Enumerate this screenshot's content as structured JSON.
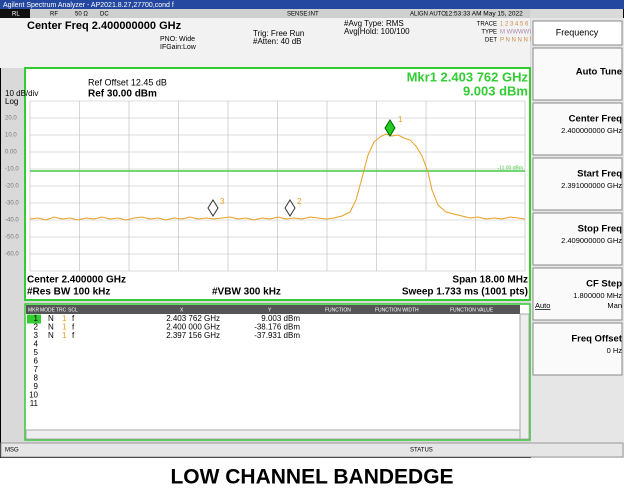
{
  "title_bar": "Agilent Spectrum Analyzer - AP2021.8.27,27700,cond f",
  "status": {
    "rl": "RL",
    "rf": "RF",
    "impedance": "50 Ω",
    "coupling": "DC",
    "sense": "SENSE:INT",
    "align": "ALIGN AUTO",
    "time": "12:53:33 AM May 15, 2022"
  },
  "header": {
    "center_freq": "Center Freq 2.400000000 GHz",
    "pno": "PNO: Wide",
    "ifgain": "IFGain:Low",
    "trig": "Trig: Free Run",
    "atten": "#Atten: 40 dB",
    "avg_type": "#Avg Type: RMS",
    "avg_hold": "Avg|Hold: 100/100",
    "trace_label": "TRACE",
    "trace_nums": "1 2 3 4 5 6",
    "type_label": "TYPE",
    "type_val": "M WWWWW",
    "det_label": "DET",
    "det_val": "P N N N N N"
  },
  "graph": {
    "ref_offset": "Ref Offset 12.45 dB",
    "scale": "10 dB/div",
    "ref_level": "Ref 30.00 dBm",
    "log": "Log",
    "marker_freq": "Mkr1 2.403 762 GHz",
    "marker_level": "9.003 dBm",
    "yticks": [
      "20.0",
      "10.0",
      "0.00",
      "-10.0",
      "-20.0",
      "-30.0",
      "-40.0",
      "-50.0",
      "-60.0"
    ],
    "display_line": "-11.00 dBm",
    "markers": [
      "1",
      "2",
      "3"
    ],
    "center": "Center 2.400000 GHz",
    "span": "Span 18.00 MHz",
    "rbw": "#Res BW 100 kHz",
    "vbw": "#VBW 300 kHz",
    "sweep": "Sweep  1.733 ms (1001 pts)"
  },
  "table": {
    "headers": [
      "MKR",
      "MODE",
      "TRC",
      "SCL",
      "X",
      "Y",
      "FUNCTION",
      "FUNCTION WIDTH",
      "FUNCTION VALUE"
    ],
    "rows": [
      [
        "1",
        "N",
        "1",
        "f",
        "2.403 762 GHz",
        "9.003 dBm"
      ],
      [
        "2",
        "N",
        "1",
        "f",
        "2.400 000 GHz",
        "-38.176 dBm"
      ],
      [
        "3",
        "N",
        "1",
        "f",
        "2.397 156 GHz",
        "-37.931 dBm"
      ]
    ],
    "empty_rows": [
      "4",
      "5",
      "6",
      "7",
      "8",
      "9",
      "10",
      "11"
    ]
  },
  "menu": {
    "title": "Frequency",
    "auto_tune": "Auto Tune",
    "center_freq": "Center Freq",
    "center_val": "2.400000000 GHz",
    "start_freq": "Start Freq",
    "start_val": "2.391000000 GHz",
    "stop_freq": "Stop Freq",
    "stop_val": "2.409000000 GHz",
    "cf_step": "CF Step",
    "cf_val": "1.800000 MHz",
    "auto": "Auto",
    "man": "Man",
    "freq_offset": "Freq Offset",
    "offset_val": "0 Hz"
  },
  "footer": {
    "msg": "MSG",
    "status": "STATUS"
  },
  "caption": "LOW CHANNEL BANDEDGE"
}
